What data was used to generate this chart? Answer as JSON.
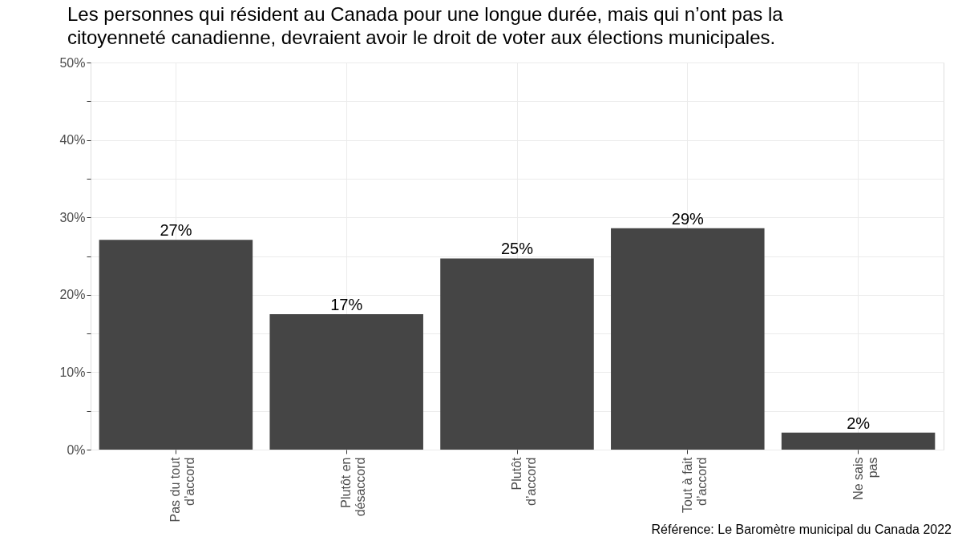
{
  "chart_data": {
    "type": "bar",
    "title": "Les personnes qui résident au Canada pour une longue durée, mais qui n’ont pas la\ncitoyenneté canadienne, devraient avoir le droit de voter aux élections municipales.",
    "categories": [
      "Pas du tout\nd’accord",
      "Plutôt en\ndésaccord",
      "Plutôt\nd’accord",
      "Tout à fait\nd’accord",
      "Ne sais\npas"
    ],
    "values": [
      27.1,
      17.5,
      24.7,
      28.6,
      2.2
    ],
    "value_labels": [
      "27%",
      "17%",
      "25%",
      "29%",
      "2%"
    ],
    "color": "#454545",
    "ylim": [
      0,
      50
    ],
    "yticks": [
      {
        "value": 0,
        "label": "0%"
      },
      {
        "value": 5,
        "label": null
      },
      {
        "value": 10,
        "label": "10%"
      },
      {
        "value": 15,
        "label": null
      },
      {
        "value": 20,
        "label": "20%"
      },
      {
        "value": 25,
        "label": null
      },
      {
        "value": 30,
        "label": "30%"
      },
      {
        "value": 35,
        "label": null
      },
      {
        "value": 40,
        "label": "40%"
      },
      {
        "value": 45,
        "label": null
      },
      {
        "value": 50,
        "label": "50%"
      }
    ],
    "grid": true,
    "annotations": [
      "Référence: Le Baromètre municipal du Canada 2022"
    ]
  }
}
